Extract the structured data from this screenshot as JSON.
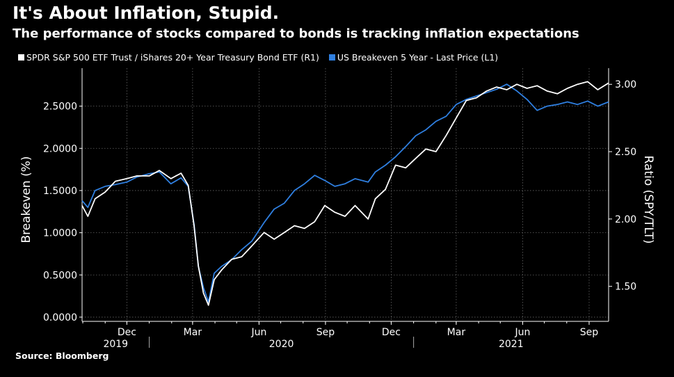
{
  "title": "It's About Inflation, Stupid.",
  "subtitle": "The performance of stocks compared to bonds is tracking inflation expectations",
  "source": "Source: Bloomberg",
  "colors": {
    "background": "#000000",
    "spy_tlt": "#ffffff",
    "breakeven": "#2f7fe0",
    "grid": "#777777"
  },
  "chart_data": {
    "type": "line",
    "legend_position": "top-left",
    "grid": true,
    "x_axis": {
      "month_ticks": [
        "Dec",
        "Mar",
        "Jun",
        "Sep",
        "Dec",
        "Mar",
        "Jun",
        "Sep"
      ],
      "year_labels": [
        "2019",
        "2020",
        "2021"
      ],
      "range": [
        "2019-09-30",
        "2021-09-28"
      ]
    },
    "y_left": {
      "label": "Breakeven (%)",
      "ticks": [
        "0.0000",
        "0.5000",
        "1.0000",
        "1.5000",
        "2.0000",
        "2.5000"
      ],
      "range": [
        -0.05,
        2.95
      ]
    },
    "y_right": {
      "label": "Ratio (SPY/TLT)",
      "ticks": [
        "1.50",
        "2.00",
        "2.50",
        "3.00"
      ],
      "range": [
        1.24,
        3.12
      ]
    },
    "series": [
      {
        "name": "SPDR S&P 500 ETF Trust / iShares 20+ Year Treasury Bond ETF (R1)",
        "axis": "right",
        "points": [
          [
            "2019-09-30",
            2.1
          ],
          [
            "2019-10-08",
            2.02
          ],
          [
            "2019-10-18",
            2.15
          ],
          [
            "2019-11-01",
            2.2
          ],
          [
            "2019-11-15",
            2.28
          ],
          [
            "2019-12-01",
            2.3
          ],
          [
            "2019-12-15",
            2.32
          ],
          [
            "2020-01-01",
            2.32
          ],
          [
            "2020-01-15",
            2.36
          ],
          [
            "2020-01-31",
            2.3
          ],
          [
            "2020-02-14",
            2.34
          ],
          [
            "2020-02-24",
            2.25
          ],
          [
            "2020-03-03",
            1.95
          ],
          [
            "2020-03-09",
            1.65
          ],
          [
            "2020-03-16",
            1.45
          ],
          [
            "2020-03-23",
            1.36
          ],
          [
            "2020-03-31",
            1.55
          ],
          [
            "2020-04-10",
            1.62
          ],
          [
            "2020-04-24",
            1.7
          ],
          [
            "2020-05-08",
            1.72
          ],
          [
            "2020-05-22",
            1.8
          ],
          [
            "2020-06-08",
            1.9
          ],
          [
            "2020-06-22",
            1.85
          ],
          [
            "2020-07-06",
            1.9
          ],
          [
            "2020-07-20",
            1.95
          ],
          [
            "2020-08-03",
            1.93
          ],
          [
            "2020-08-17",
            1.98
          ],
          [
            "2020-08-31",
            2.1
          ],
          [
            "2020-09-14",
            2.05
          ],
          [
            "2020-09-28",
            2.02
          ],
          [
            "2020-10-12",
            2.1
          ],
          [
            "2020-10-30",
            2.0
          ],
          [
            "2020-11-09",
            2.15
          ],
          [
            "2020-11-23",
            2.22
          ],
          [
            "2020-12-07",
            2.4
          ],
          [
            "2020-12-21",
            2.38
          ],
          [
            "2021-01-04",
            2.45
          ],
          [
            "2021-01-18",
            2.52
          ],
          [
            "2021-02-01",
            2.5
          ],
          [
            "2021-02-15",
            2.62
          ],
          [
            "2021-03-01",
            2.75
          ],
          [
            "2021-03-15",
            2.88
          ],
          [
            "2021-03-29",
            2.9
          ],
          [
            "2021-04-12",
            2.95
          ],
          [
            "2021-04-26",
            2.98
          ],
          [
            "2021-05-10",
            2.96
          ],
          [
            "2021-05-24",
            3.0
          ],
          [
            "2021-06-07",
            2.97
          ],
          [
            "2021-06-21",
            2.99
          ],
          [
            "2021-07-05",
            2.95
          ],
          [
            "2021-07-19",
            2.93
          ],
          [
            "2021-08-02",
            2.97
          ],
          [
            "2021-08-16",
            3.0
          ],
          [
            "2021-08-30",
            3.02
          ],
          [
            "2021-09-13",
            2.96
          ],
          [
            "2021-09-28",
            3.01
          ]
        ]
      },
      {
        "name": "US Breakeven 5 Year - Last Price (L1)",
        "axis": "left",
        "points": [
          [
            "2019-09-30",
            1.38
          ],
          [
            "2019-10-08",
            1.3
          ],
          [
            "2019-10-18",
            1.5
          ],
          [
            "2019-11-01",
            1.55
          ],
          [
            "2019-11-15",
            1.57
          ],
          [
            "2019-12-01",
            1.6
          ],
          [
            "2019-12-15",
            1.66
          ],
          [
            "2020-01-01",
            1.7
          ],
          [
            "2020-01-15",
            1.72
          ],
          [
            "2020-01-31",
            1.58
          ],
          [
            "2020-02-14",
            1.65
          ],
          [
            "2020-02-24",
            1.55
          ],
          [
            "2020-03-03",
            1.1
          ],
          [
            "2020-03-09",
            0.6
          ],
          [
            "2020-03-16",
            0.35
          ],
          [
            "2020-03-23",
            0.18
          ],
          [
            "2020-03-31",
            0.52
          ],
          [
            "2020-04-10",
            0.6
          ],
          [
            "2020-04-24",
            0.68
          ],
          [
            "2020-05-08",
            0.8
          ],
          [
            "2020-05-22",
            0.9
          ],
          [
            "2020-06-08",
            1.12
          ],
          [
            "2020-06-22",
            1.28
          ],
          [
            "2020-07-06",
            1.35
          ],
          [
            "2020-07-20",
            1.5
          ],
          [
            "2020-08-03",
            1.58
          ],
          [
            "2020-08-17",
            1.68
          ],
          [
            "2020-08-31",
            1.62
          ],
          [
            "2020-09-14",
            1.55
          ],
          [
            "2020-09-28",
            1.58
          ],
          [
            "2020-10-12",
            1.64
          ],
          [
            "2020-10-30",
            1.6
          ],
          [
            "2020-11-09",
            1.72
          ],
          [
            "2020-11-23",
            1.8
          ],
          [
            "2020-12-07",
            1.9
          ],
          [
            "2020-12-21",
            2.02
          ],
          [
            "2021-01-04",
            2.15
          ],
          [
            "2021-01-18",
            2.22
          ],
          [
            "2021-02-01",
            2.32
          ],
          [
            "2021-02-15",
            2.38
          ],
          [
            "2021-03-01",
            2.52
          ],
          [
            "2021-03-15",
            2.58
          ],
          [
            "2021-03-29",
            2.62
          ],
          [
            "2021-04-12",
            2.66
          ],
          [
            "2021-04-26",
            2.7
          ],
          [
            "2021-05-10",
            2.76
          ],
          [
            "2021-05-24",
            2.68
          ],
          [
            "2021-06-07",
            2.58
          ],
          [
            "2021-06-21",
            2.45
          ],
          [
            "2021-07-05",
            2.5
          ],
          [
            "2021-07-19",
            2.52
          ],
          [
            "2021-08-02",
            2.55
          ],
          [
            "2021-08-16",
            2.52
          ],
          [
            "2021-08-30",
            2.56
          ],
          [
            "2021-09-13",
            2.5
          ],
          [
            "2021-09-28",
            2.55
          ]
        ]
      }
    ]
  }
}
